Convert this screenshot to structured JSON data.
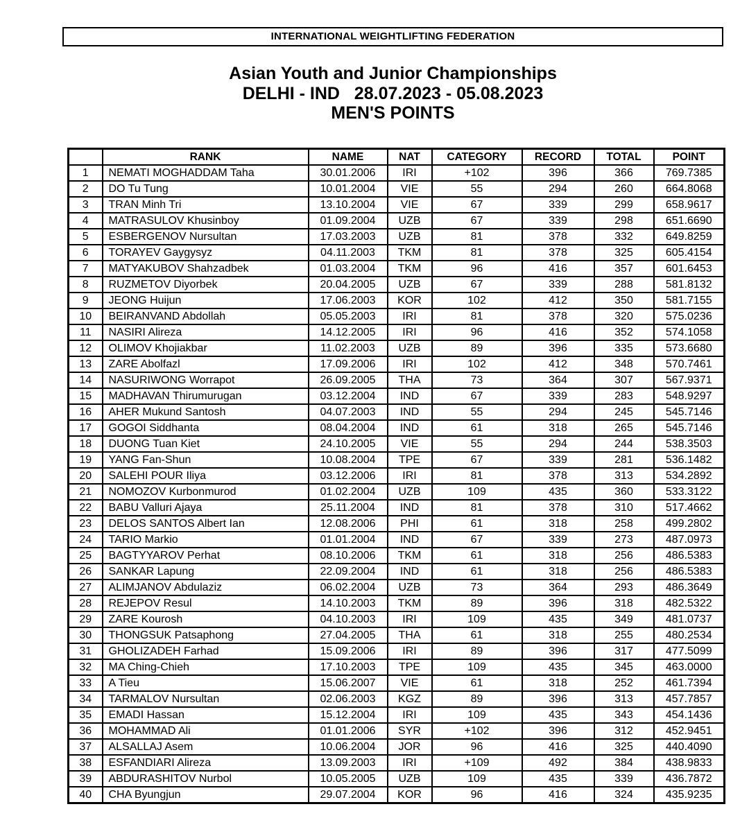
{
  "banner": {
    "title": "INTERNATIONAL WEIGHTLIFTING FEDERATION"
  },
  "titles": {
    "line1": "Asian Youth and Junior Championships",
    "line2": "DELHI - IND   28.07.2023 - 05.08.2023",
    "line3": "MEN'S POINTS"
  },
  "table": {
    "columns": [
      "",
      "RANK",
      "NAME",
      "NAT",
      "CATEGORY",
      "RECORD",
      "TOTAL",
      "POINT"
    ],
    "rows": [
      [
        "1",
        "NEMATI MOGHADDAM Taha",
        "30.01.2006",
        "IRI",
        "+102",
        "396",
        "366",
        "769.7385"
      ],
      [
        "2",
        "DO Tu Tung",
        "10.01.2004",
        "VIE",
        "55",
        "294",
        "260",
        "664.8068"
      ],
      [
        "3",
        "TRAN Minh Tri",
        "13.10.2004",
        "VIE",
        "67",
        "339",
        "299",
        "658.9617"
      ],
      [
        "4",
        "MATRASULOV Khusinboy",
        "01.09.2004",
        "UZB",
        "67",
        "339",
        "298",
        "651.6690"
      ],
      [
        "5",
        "ESBERGENOV Nursultan",
        "17.03.2003",
        "UZB",
        "81",
        "378",
        "332",
        "649.8259"
      ],
      [
        "6",
        "TORAYEV Gaygysyz",
        "04.11.2003",
        "TKM",
        "81",
        "378",
        "325",
        "605.4154"
      ],
      [
        "7",
        "MATYAKUBOV Shahzadbek",
        "01.03.2004",
        "TKM",
        "96",
        "416",
        "357",
        "601.6453"
      ],
      [
        "8",
        "RUZMETOV Diyorbek",
        "20.04.2005",
        "UZB",
        "67",
        "339",
        "288",
        "581.8132"
      ],
      [
        "9",
        "JEONG Huijun",
        "17.06.2003",
        "KOR",
        "102",
        "412",
        "350",
        "581.7155"
      ],
      [
        "10",
        "BEIRANVAND Abdollah",
        "05.05.2003",
        "IRI",
        "81",
        "378",
        "320",
        "575.0236"
      ],
      [
        "11",
        "NASIRI Alireza",
        "14.12.2005",
        "IRI",
        "96",
        "416",
        "352",
        "574.1058"
      ],
      [
        "12",
        "OLIMOV Khojiakbar",
        "11.02.2003",
        "UZB",
        "89",
        "396",
        "335",
        "573.6680"
      ],
      [
        "13",
        "ZARE Abolfazl",
        "17.09.2006",
        "IRI",
        "102",
        "412",
        "348",
        "570.7461"
      ],
      [
        "14",
        "NASURIWONG Worrapot",
        "26.09.2005",
        "THA",
        "73",
        "364",
        "307",
        "567.9371"
      ],
      [
        "15",
        "MADHAVAN Thirumurugan",
        "03.12.2004",
        "IND",
        "67",
        "339",
        "283",
        "548.9297"
      ],
      [
        "16",
        "AHER Mukund Santosh",
        "04.07.2003",
        "IND",
        "55",
        "294",
        "245",
        "545.7146"
      ],
      [
        "17",
        "GOGOI Siddhanta",
        "08.04.2004",
        "IND",
        "61",
        "318",
        "265",
        "545.7146"
      ],
      [
        "18",
        "DUONG Tuan Kiet",
        "24.10.2005",
        "VIE",
        "55",
        "294",
        "244",
        "538.3503"
      ],
      [
        "19",
        "YANG Fan-Shun",
        "10.08.2004",
        "TPE",
        "67",
        "339",
        "281",
        "536.1482"
      ],
      [
        "20",
        "SALEHI POUR Iliya",
        "03.12.2006",
        "IRI",
        "81",
        "378",
        "313",
        "534.2892"
      ],
      [
        "21",
        "NOMOZOV Kurbonmurod",
        "01.02.2004",
        "UZB",
        "109",
        "435",
        "360",
        "533.3122"
      ],
      [
        "22",
        "BABU Valluri Ajaya",
        "25.11.2004",
        "IND",
        "81",
        "378",
        "310",
        "517.4662"
      ],
      [
        "23",
        "DELOS SANTOS Albert Ian",
        "12.08.2006",
        "PHI",
        "61",
        "318",
        "258",
        "499.2802"
      ],
      [
        "24",
        "TARIO Markio",
        "01.01.2004",
        "IND",
        "67",
        "339",
        "273",
        "487.0973"
      ],
      [
        "25",
        "BAGTYYAROV Perhat",
        "08.10.2006",
        "TKM",
        "61",
        "318",
        "256",
        "486.5383"
      ],
      [
        "26",
        "SANKAR Lapung",
        "22.09.2004",
        "IND",
        "61",
        "318",
        "256",
        "486.5383"
      ],
      [
        "27",
        "ALIMJANOV Abdulaziz",
        "06.02.2004",
        "UZB",
        "73",
        "364",
        "293",
        "486.3649"
      ],
      [
        "28",
        "REJEPOV Resul",
        "14.10.2003",
        "TKM",
        "89",
        "396",
        "318",
        "482.5322"
      ],
      [
        "29",
        "ZARE Kourosh",
        "04.10.2003",
        "IRI",
        "109",
        "435",
        "349",
        "481.0737"
      ],
      [
        "30",
        "THONGSUK Patsaphong",
        "27.04.2005",
        "THA",
        "61",
        "318",
        "255",
        "480.2534"
      ],
      [
        "31",
        "GHOLIZADEH Farhad",
        "15.09.2006",
        "IRI",
        "89",
        "396",
        "317",
        "477.5099"
      ],
      [
        "32",
        "MA Ching-Chieh",
        "17.10.2003",
        "TPE",
        "109",
        "435",
        "345",
        "463.0000"
      ],
      [
        "33",
        "A Tieu",
        "15.06.2007",
        "VIE",
        "61",
        "318",
        "252",
        "461.7394"
      ],
      [
        "34",
        "TARMALOV Nursultan",
        "02.06.2003",
        "KGZ",
        "89",
        "396",
        "313",
        "457.7857"
      ],
      [
        "35",
        "EMADI Hassan",
        "15.12.2004",
        "IRI",
        "109",
        "435",
        "343",
        "454.1436"
      ],
      [
        "36",
        "MOHAMMAD Ali",
        "01.01.2006",
        "SYR",
        "+102",
        "396",
        "312",
        "452.9451"
      ],
      [
        "37",
        "ALSALLAJ Asem",
        "10.06.2004",
        "JOR",
        "96",
        "416",
        "325",
        "440.4090"
      ],
      [
        "38",
        "ESFANDIARI Alireza",
        "13.09.2003",
        "IRI",
        "+109",
        "492",
        "384",
        "438.9833"
      ],
      [
        "39",
        "ABDURASHITOV Nurbol",
        "10.05.2005",
        "UZB",
        "109",
        "435",
        "339",
        "436.7872"
      ],
      [
        "40",
        "CHA Byungjun",
        "29.07.2004",
        "KOR",
        "96",
        "416",
        "324",
        "435.9235"
      ]
    ]
  }
}
